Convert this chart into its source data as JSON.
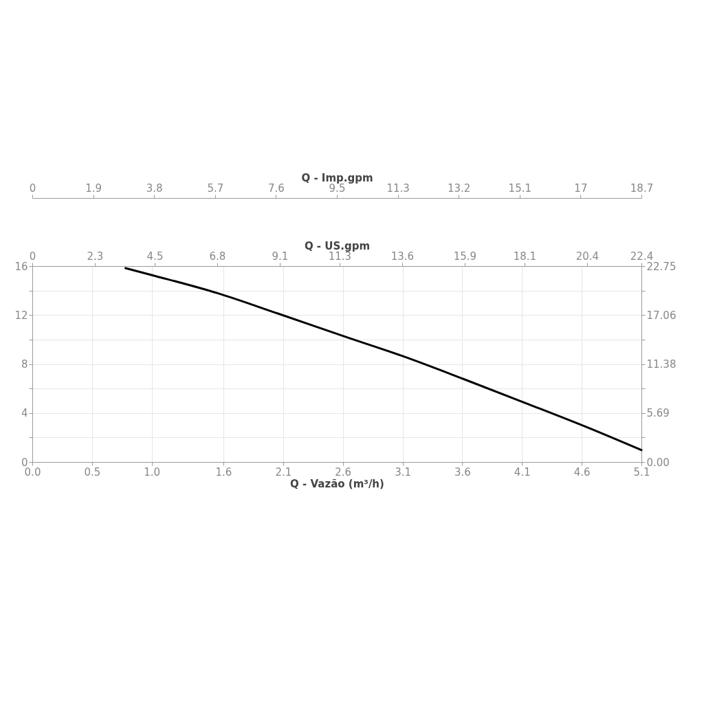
{
  "chart_data": [
    {
      "type": "other",
      "xlabel": "Q - Imp.gpm",
      "categories": [
        "0",
        "1.9",
        "3.8",
        "5.7",
        "7.6",
        "9.5",
        "11.3",
        "13.2",
        "15.1",
        "17",
        "18.7"
      ]
    },
    {
      "type": "line",
      "xlabel": "Q - Vazão (m³/h)",
      "x2label": "Q - US.gpm",
      "x": [
        0.78,
        1.03,
        1.55,
        2.06,
        2.66,
        3.1,
        3.61,
        4.13,
        4.64,
        5.1
      ],
      "series": [
        {
          "color": "#000000",
          "values": [
            15.83,
            15.19,
            13.79,
            12.11,
            10.1,
            8.65,
            6.78,
            4.81,
            2.85,
            0.97
          ]
        }
      ],
      "xlim": [
        0,
        5.1
      ],
      "xticks": [
        {
          "value": 0,
          "label": "0.0"
        },
        0.5,
        {
          "value": 1,
          "label": "1.0"
        },
        1.6,
        2.1,
        2.6,
        3.1,
        3.6,
        4.1,
        4.6,
        5.1
      ],
      "x2lim": [
        0,
        22.4
      ],
      "x2ticks": [
        0,
        2.3,
        4.5,
        6.8,
        9.1,
        11.3,
        13.6,
        15.9,
        18.1,
        20.4,
        22.4
      ],
      "ylim": [
        0,
        16
      ],
      "yticks": [
        0,
        {
          "value": 2,
          "label": null
        },
        4,
        {
          "value": 6,
          "label": null
        },
        8,
        {
          "value": 10,
          "label": null
        },
        12,
        {
          "value": 14,
          "label": null
        },
        16
      ],
      "y2lim": [
        0,
        22.75
      ],
      "y2ticks": [
        {
          "value": 0,
          "label": "0.00"
        },
        {
          "value": 2.84375,
          "label": null
        },
        {
          "value": 5.6875,
          "label": "5.69"
        },
        {
          "value": 8.53125,
          "label": null
        },
        {
          "value": 11.375,
          "label": "11.38"
        },
        {
          "value": 14.21875,
          "label": null
        },
        {
          "value": 17.0625,
          "label": "17.06"
        },
        {
          "value": 19.90625,
          "label": null
        },
        {
          "value": 22.75,
          "label": "22.75"
        }
      ],
      "grid": true,
      "marker": "none",
      "line_style": "solid"
    }
  ]
}
